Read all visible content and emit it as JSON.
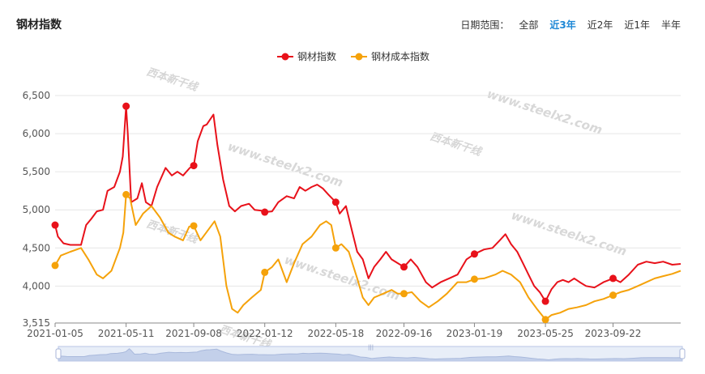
{
  "header": {
    "title": "钢材指数",
    "range_label": "日期范围：",
    "range_options": [
      "全部",
      "近3年",
      "近2年",
      "近1年",
      "半年"
    ],
    "range_active": "近3年"
  },
  "watermarks": [
    "www.steelx2.com",
    "西本新干线"
  ],
  "colors": {
    "steel": "#e8111a",
    "cost": "#f5a20a"
  },
  "chart_data": {
    "type": "line",
    "title": "钢材指数",
    "legend": [
      "钢材指数",
      "钢材成本指数"
    ],
    "legend_position": "top-center",
    "xlim": [
      "2021-01-05",
      "2024-01-20"
    ],
    "ylim": [
      3515,
      6700
    ],
    "yticks": [
      3515,
      4000,
      4500,
      5000,
      5500,
      6000,
      6500
    ],
    "ytick_labels": [
      "3,515",
      "4,000",
      "4,500",
      "5,000",
      "5,500",
      "6,000",
      "6,500"
    ],
    "xticks": [
      "2021-01-05",
      "2021-05-11",
      "2021-09-08",
      "2022-01-12",
      "2022-05-18",
      "2022-09-16",
      "2023-01-19",
      "2023-05-25",
      "2023-09-22"
    ],
    "grid": true,
    "series": [
      {
        "name": "钢材指数",
        "color": "#e8111a",
        "points": [
          [
            "2021-01-05",
            4800
          ],
          [
            "2021-01-10",
            4650
          ],
          [
            "2021-01-20",
            4560
          ],
          [
            "2021-02-01",
            4540
          ],
          [
            "2021-02-20",
            4540
          ],
          [
            "2021-03-01",
            4800
          ],
          [
            "2021-03-10",
            4880
          ],
          [
            "2021-03-20",
            4980
          ],
          [
            "2021-03-31",
            5000
          ],
          [
            "2021-04-08",
            5250
          ],
          [
            "2021-04-20",
            5300
          ],
          [
            "2021-04-30",
            5500
          ],
          [
            "2021-05-05",
            5700
          ],
          [
            "2021-05-11",
            6360
          ],
          [
            "2021-05-14",
            6000
          ],
          [
            "2021-05-20",
            5100
          ],
          [
            "2021-05-31",
            5150
          ],
          [
            "2021-06-08",
            5350
          ],
          [
            "2021-06-15",
            5100
          ],
          [
            "2021-06-25",
            5050
          ],
          [
            "2021-07-05",
            5300
          ],
          [
            "2021-07-20",
            5550
          ],
          [
            "2021-07-31",
            5450
          ],
          [
            "2021-08-10",
            5500
          ],
          [
            "2021-08-20",
            5450
          ],
          [
            "2021-09-01",
            5550
          ],
          [
            "2021-09-08",
            5580
          ],
          [
            "2021-09-15",
            5900
          ],
          [
            "2021-09-25",
            6100
          ],
          [
            "2021-10-01",
            6120
          ],
          [
            "2021-10-13",
            6250
          ],
          [
            "2021-10-20",
            5850
          ],
          [
            "2021-10-30",
            5400
          ],
          [
            "2021-11-10",
            5050
          ],
          [
            "2021-11-20",
            4980
          ],
          [
            "2021-12-01",
            5050
          ],
          [
            "2021-12-15",
            5080
          ],
          [
            "2021-12-25",
            5000
          ],
          [
            "2022-01-05",
            4990
          ],
          [
            "2022-01-12",
            4970
          ],
          [
            "2022-01-25",
            4980
          ],
          [
            "2022-02-05",
            5100
          ],
          [
            "2022-02-20",
            5180
          ],
          [
            "2022-03-05",
            5150
          ],
          [
            "2022-03-15",
            5300
          ],
          [
            "2022-03-25",
            5250
          ],
          [
            "2022-04-05",
            5300
          ],
          [
            "2022-04-15",
            5330
          ],
          [
            "2022-04-25",
            5280
          ],
          [
            "2022-05-05",
            5200
          ],
          [
            "2022-05-18",
            5100
          ],
          [
            "2022-05-25",
            4950
          ],
          [
            "2022-06-05",
            5050
          ],
          [
            "2022-06-15",
            4750
          ],
          [
            "2022-06-25",
            4450
          ],
          [
            "2022-07-05",
            4350
          ],
          [
            "2022-07-15",
            4100
          ],
          [
            "2022-07-25",
            4250
          ],
          [
            "2022-08-05",
            4350
          ],
          [
            "2022-08-15",
            4450
          ],
          [
            "2022-08-25",
            4350
          ],
          [
            "2022-09-05",
            4300
          ],
          [
            "2022-09-16",
            4250
          ],
          [
            "2022-09-28",
            4350
          ],
          [
            "2022-10-10",
            4250
          ],
          [
            "2022-10-25",
            4050
          ],
          [
            "2022-11-05",
            3980
          ],
          [
            "2022-11-20",
            4050
          ],
          [
            "2022-12-05",
            4100
          ],
          [
            "2022-12-20",
            4150
          ],
          [
            "2023-01-05",
            4350
          ],
          [
            "2023-01-19",
            4420
          ],
          [
            "2023-02-05",
            4480
          ],
          [
            "2023-02-20",
            4500
          ],
          [
            "2023-03-05",
            4600
          ],
          [
            "2023-03-15",
            4680
          ],
          [
            "2023-03-25",
            4550
          ],
          [
            "2023-04-05",
            4450
          ],
          [
            "2023-04-15",
            4300
          ],
          [
            "2023-04-25",
            4150
          ],
          [
            "2023-05-05",
            4000
          ],
          [
            "2023-05-15",
            3920
          ],
          [
            "2023-05-25",
            3800
          ],
          [
            "2023-06-05",
            3960
          ],
          [
            "2023-06-15",
            4050
          ],
          [
            "2023-06-25",
            4080
          ],
          [
            "2023-07-05",
            4050
          ],
          [
            "2023-07-15",
            4100
          ],
          [
            "2023-07-25",
            4050
          ],
          [
            "2023-08-05",
            4000
          ],
          [
            "2023-08-20",
            3980
          ],
          [
            "2023-09-05",
            4050
          ],
          [
            "2023-09-22",
            4100
          ],
          [
            "2023-10-05",
            4050
          ],
          [
            "2023-10-20",
            4150
          ],
          [
            "2023-11-05",
            4280
          ],
          [
            "2023-11-20",
            4320
          ],
          [
            "2023-12-05",
            4300
          ],
          [
            "2023-12-20",
            4320
          ],
          [
            "2024-01-05",
            4280
          ],
          [
            "2024-01-20",
            4290
          ]
        ]
      },
      {
        "name": "钢材成本指数",
        "color": "#f5a20a",
        "points": [
          [
            "2021-01-05",
            4270
          ],
          [
            "2021-01-15",
            4400
          ],
          [
            "2021-02-01",
            4450
          ],
          [
            "2021-02-20",
            4500
          ],
          [
            "2021-03-05",
            4350
          ],
          [
            "2021-03-20",
            4150
          ],
          [
            "2021-03-31",
            4100
          ],
          [
            "2021-04-15",
            4200
          ],
          [
            "2021-04-30",
            4500
          ],
          [
            "2021-05-06",
            4700
          ],
          [
            "2021-05-11",
            5200
          ],
          [
            "2021-05-18",
            5150
          ],
          [
            "2021-05-28",
            4800
          ],
          [
            "2021-06-10",
            4950
          ],
          [
            "2021-06-25",
            5050
          ],
          [
            "2021-07-10",
            4900
          ],
          [
            "2021-07-25",
            4700
          ],
          [
            "2021-08-05",
            4650
          ],
          [
            "2021-08-20",
            4600
          ],
          [
            "2021-08-31",
            4780
          ],
          [
            "2021-09-08",
            4790
          ],
          [
            "2021-09-20",
            4600
          ],
          [
            "2021-10-05",
            4750
          ],
          [
            "2021-10-15",
            4850
          ],
          [
            "2021-10-25",
            4650
          ],
          [
            "2021-11-05",
            4000
          ],
          [
            "2021-11-15",
            3700
          ],
          [
            "2021-11-25",
            3650
          ],
          [
            "2021-12-05",
            3750
          ],
          [
            "2021-12-20",
            3850
          ],
          [
            "2022-01-05",
            3950
          ],
          [
            "2022-01-12",
            4180
          ],
          [
            "2022-01-25",
            4250
          ],
          [
            "2022-02-05",
            4350
          ],
          [
            "2022-02-20",
            4050
          ],
          [
            "2022-03-05",
            4300
          ],
          [
            "2022-03-20",
            4550
          ],
          [
            "2022-04-05",
            4650
          ],
          [
            "2022-04-20",
            4800
          ],
          [
            "2022-05-01",
            4850
          ],
          [
            "2022-05-10",
            4800
          ],
          [
            "2022-05-18",
            4500
          ],
          [
            "2022-05-28",
            4550
          ],
          [
            "2022-06-10",
            4450
          ],
          [
            "2022-06-25",
            4100
          ],
          [
            "2022-07-05",
            3850
          ],
          [
            "2022-07-15",
            3750
          ],
          [
            "2022-07-25",
            3850
          ],
          [
            "2022-08-10",
            3900
          ],
          [
            "2022-08-25",
            3950
          ],
          [
            "2022-09-05",
            3900
          ],
          [
            "2022-09-16",
            3900
          ],
          [
            "2022-09-30",
            3920
          ],
          [
            "2022-10-15",
            3800
          ],
          [
            "2022-10-30",
            3720
          ],
          [
            "2022-11-15",
            3800
          ],
          [
            "2022-12-01",
            3900
          ],
          [
            "2022-12-20",
            4050
          ],
          [
            "2023-01-05",
            4050
          ],
          [
            "2023-01-19",
            4090
          ],
          [
            "2023-02-05",
            4100
          ],
          [
            "2023-02-25",
            4150
          ],
          [
            "2023-03-10",
            4200
          ],
          [
            "2023-03-25",
            4150
          ],
          [
            "2023-04-10",
            4050
          ],
          [
            "2023-04-25",
            3850
          ],
          [
            "2023-05-10",
            3700
          ],
          [
            "2023-05-25",
            3560
          ],
          [
            "2023-06-05",
            3620
          ],
          [
            "2023-06-20",
            3650
          ],
          [
            "2023-07-05",
            3700
          ],
          [
            "2023-07-20",
            3720
          ],
          [
            "2023-08-05",
            3750
          ],
          [
            "2023-08-20",
            3800
          ],
          [
            "2023-09-05",
            3830
          ],
          [
            "2023-09-22",
            3880
          ],
          [
            "2023-10-05",
            3920
          ],
          [
            "2023-10-20",
            3950
          ],
          [
            "2023-11-05",
            4000
          ],
          [
            "2023-11-20",
            4050
          ],
          [
            "2023-12-05",
            4100
          ],
          [
            "2023-12-20",
            4130
          ],
          [
            "2024-01-05",
            4160
          ],
          [
            "2024-01-20",
            4200
          ]
        ]
      }
    ],
    "markers": [
      {
        "series": 0,
        "x": "2021-01-05",
        "y": 4800
      },
      {
        "series": 0,
        "x": "2021-05-11",
        "y": 6360
      },
      {
        "series": 0,
        "x": "2021-09-08",
        "y": 5580
      },
      {
        "series": 0,
        "x": "2022-01-12",
        "y": 4970
      },
      {
        "series": 0,
        "x": "2022-05-18",
        "y": 5100
      },
      {
        "series": 0,
        "x": "2022-09-16",
        "y": 4250
      },
      {
        "series": 0,
        "x": "2023-01-19",
        "y": 4420
      },
      {
        "series": 0,
        "x": "2023-05-25",
        "y": 3800
      },
      {
        "series": 0,
        "x": "2023-09-22",
        "y": 4100
      },
      {
        "series": 1,
        "x": "2021-01-05",
        "y": 4270
      },
      {
        "series": 1,
        "x": "2021-05-11",
        "y": 5200
      },
      {
        "series": 1,
        "x": "2021-09-08",
        "y": 4790
      },
      {
        "series": 1,
        "x": "2022-01-12",
        "y": 4180
      },
      {
        "series": 1,
        "x": "2022-05-18",
        "y": 4500
      },
      {
        "series": 1,
        "x": "2022-09-16",
        "y": 3900
      },
      {
        "series": 1,
        "x": "2023-01-19",
        "y": 4090
      },
      {
        "series": 1,
        "x": "2023-05-25",
        "y": 3560
      },
      {
        "series": 1,
        "x": "2023-09-22",
        "y": 3880
      }
    ]
  }
}
